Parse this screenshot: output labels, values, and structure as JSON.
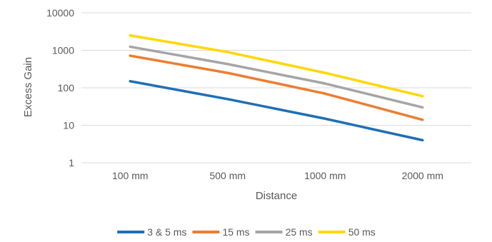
{
  "chart_data": {
    "type": "line",
    "title": "",
    "xlabel": "Distance",
    "ylabel": "Excess Gain",
    "y_scale": "log",
    "ylim": [
      1,
      10000
    ],
    "y_ticks": [
      "1",
      "10",
      "100",
      "1000",
      "10000"
    ],
    "grid": "horizontal",
    "legend_position": "bottom",
    "categories": [
      "100 mm",
      "500 mm",
      "1000 mm",
      "2000 mm"
    ],
    "series": [
      {
        "name": "3 & 5 ms",
        "color": "#1f6fb4",
        "values": [
          150,
          50,
          15,
          4
        ]
      },
      {
        "name": "15 ms",
        "color": "#ed7d31",
        "values": [
          720,
          250,
          70,
          14
        ]
      },
      {
        "name": "25 ms",
        "color": "#a5a5a5",
        "values": [
          1250,
          430,
          130,
          30
        ]
      },
      {
        "name": "50 ms",
        "color": "#ffd700",
        "values": [
          2500,
          900,
          250,
          60
        ]
      }
    ]
  }
}
